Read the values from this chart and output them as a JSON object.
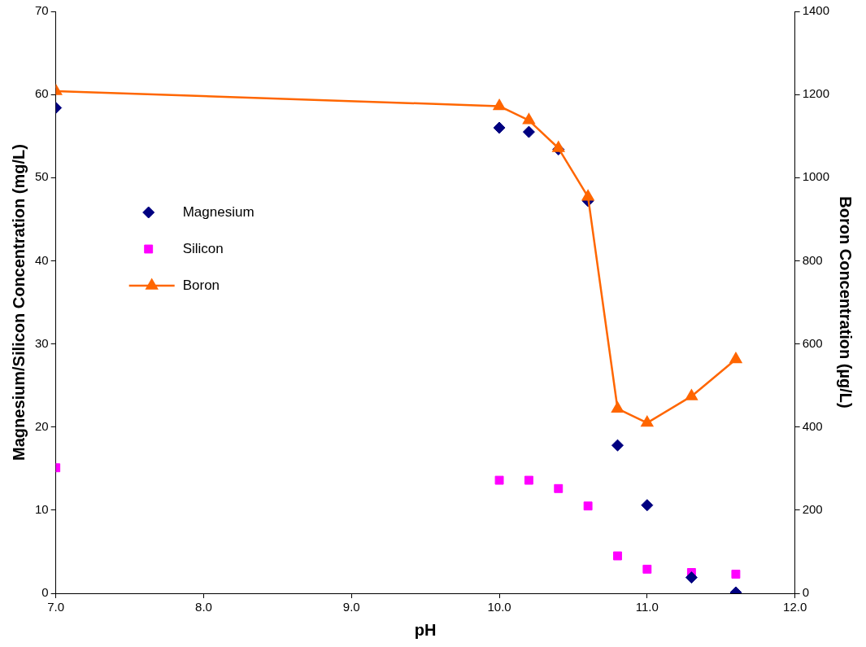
{
  "chart_data": {
    "type": "scatter",
    "xlabel": "pH",
    "ylabel": "Magnesium/Silicon Concentration (mg/L)",
    "y2label": "Boron Concentration (µg/L)",
    "x": [
      7.0,
      10.0,
      10.2,
      10.4,
      10.6,
      10.8,
      11.0,
      11.3,
      11.6
    ],
    "series": [
      {
        "name": "Magnesium",
        "marker": "diamond",
        "color": "#000080",
        "values": [
          58.4,
          56.0,
          55.5,
          53.4,
          47.2,
          17.8,
          10.6,
          1.9,
          0.1
        ]
      },
      {
        "name": "Silicon",
        "marker": "square",
        "color": "#ff00ff",
        "values": [
          15.1,
          13.6,
          13.6,
          12.6,
          10.5,
          4.5,
          2.9,
          2.5,
          2.3
        ]
      },
      {
        "name": "Boron",
        "type": "line",
        "marker": "triangle",
        "axis": "y2",
        "color": "#ff6600",
        "values": [
          1208,
          1172,
          1138,
          1071,
          954,
          444,
          410,
          474,
          563
        ]
      }
    ],
    "xlim": [
      7,
      12
    ],
    "xticks": [
      {
        "value": 7,
        "label": "7.0"
      },
      {
        "value": 8,
        "label": "8.0"
      },
      {
        "value": 9,
        "label": "9.0"
      },
      {
        "value": 10,
        "label": "10.0"
      },
      {
        "value": 11,
        "label": "11.0"
      },
      {
        "value": 12,
        "label": "12.0"
      }
    ],
    "ylim": [
      0,
      70
    ],
    "yticks": [
      0,
      10,
      20,
      30,
      40,
      50,
      60,
      70
    ],
    "y2lim": [
      0,
      1400
    ],
    "y2ticks": [
      0,
      200,
      400,
      600,
      800,
      1000,
      1200,
      1400
    ],
    "grid": false,
    "legend": "left"
  }
}
